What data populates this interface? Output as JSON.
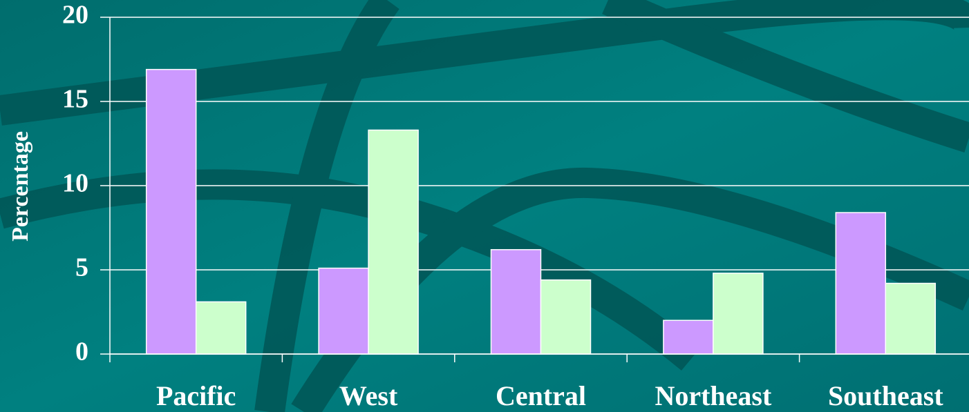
{
  "chart_data": {
    "type": "bar",
    "y_label": "Percentage",
    "categories": [
      "Pacific",
      "West",
      "Central",
      "Northeast",
      "Southeast"
    ],
    "series": [
      {
        "color": "#cc99ff",
        "values": [
          16.9,
          5.1,
          6.2,
          2.0,
          8.4
        ]
      },
      {
        "color": "#ccffcc",
        "values": [
          3.1,
          13.3,
          4.4,
          4.8,
          4.2
        ]
      }
    ],
    "ylim": [
      0,
      20
    ],
    "yticks": [
      0,
      5,
      10,
      15,
      20
    ],
    "grid": true
  }
}
